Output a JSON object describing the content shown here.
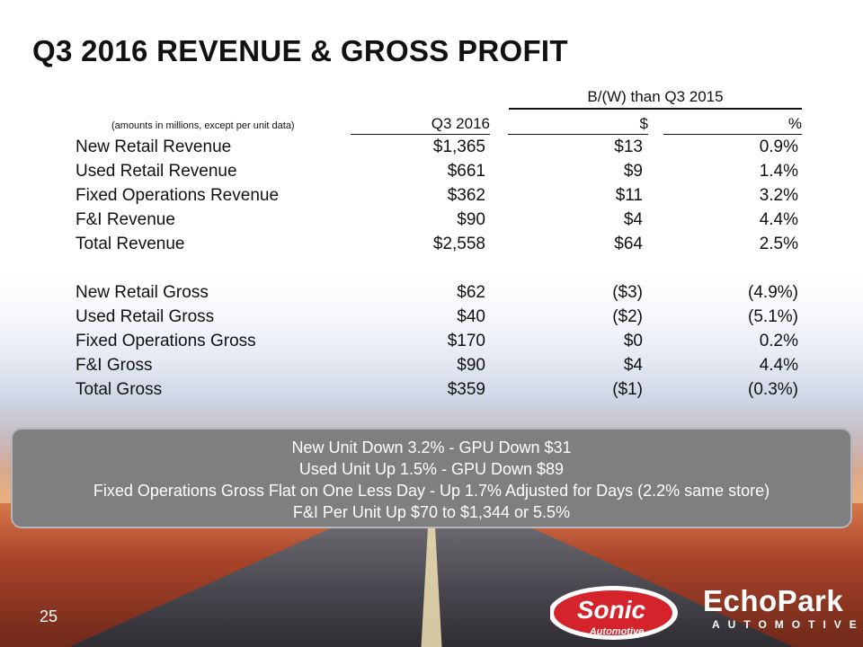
{
  "title": "Q3 2016 REVENUE & GROSS PROFIT",
  "table": {
    "group_header": "B/(W) than Q3 2015",
    "unit_note": "(amounts in millions, except per unit data)",
    "columns": [
      "Q3 2016",
      "$",
      "%"
    ],
    "revenue_rows": [
      {
        "label": "New Retail Revenue",
        "q3_2016": "$1,365",
        "change_dollar": "$13",
        "change_pct": "0.9%"
      },
      {
        "label": "Used Retail Revenue",
        "q3_2016": "$661",
        "change_dollar": "$9",
        "change_pct": "1.4%"
      },
      {
        "label": "Fixed Operations Revenue",
        "q3_2016": "$362",
        "change_dollar": "$11",
        "change_pct": "3.2%"
      },
      {
        "label": "F&I Revenue",
        "q3_2016": "$90",
        "change_dollar": "$4",
        "change_pct": "4.4%"
      },
      {
        "label": "Total Revenue",
        "q3_2016": "$2,558",
        "change_dollar": "$64",
        "change_pct": "2.5%"
      }
    ],
    "gross_rows": [
      {
        "label": "New Retail Gross",
        "q3_2016": "$62",
        "change_dollar": "($3)",
        "change_pct": "(4.9%)"
      },
      {
        "label": "Used Retail Gross",
        "q3_2016": "$40",
        "change_dollar": "($2)",
        "change_pct": "(5.1%)"
      },
      {
        "label": "Fixed Operations Gross",
        "q3_2016": "$170",
        "change_dollar": "$0",
        "change_pct": "0.2%"
      },
      {
        "label": "F&I Gross",
        "q3_2016": "$90",
        "change_dollar": "$4",
        "change_pct": "4.4%"
      },
      {
        "label": "Total Gross",
        "q3_2016": "$359",
        "change_dollar": "($1)",
        "change_pct": "(0.3%)"
      }
    ]
  },
  "callout": [
    "New Unit Down 3.2% - GPU Down $31",
    "Used Unit Up 1.5% - GPU Down $89",
    "Fixed Operations Gross Flat on One Less Day - Up 1.7% Adjusted for Days (2.2% same store)",
    "F&I Per Unit Up $70 to $1,344 or 5.5%"
  ],
  "page_number": "25",
  "logos": {
    "sonic_word": "Sonic",
    "sonic_sub": "Automotive",
    "echopark_word": "EchoPark",
    "echopark_sub": "AUTOMOTIVE"
  },
  "colors": {
    "title": "#111111",
    "callout_bg": "#7f7f82",
    "callout_text": "#ffffff",
    "sonic_red": "#d4232b"
  }
}
